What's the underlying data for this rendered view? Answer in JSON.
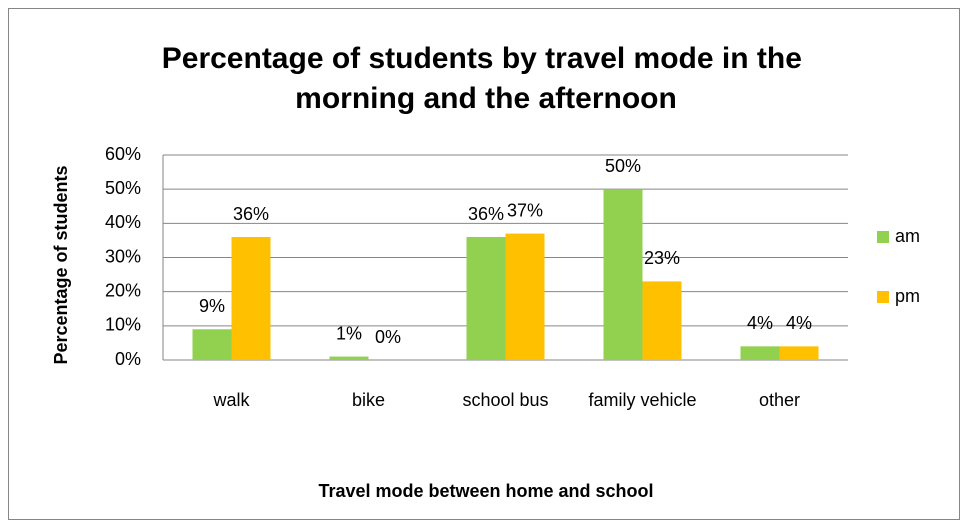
{
  "chart_data": {
    "type": "bar",
    "title": "Percentage of students by travel mode in the morning and the afternoon",
    "xlabel": "Travel mode between home and school",
    "ylabel": "Percentage of students",
    "categories": [
      "walk",
      "bike",
      "school bus",
      "family vehicle",
      "other"
    ],
    "series": [
      {
        "name": "am",
        "color": "#92d050",
        "values": [
          9,
          1,
          36,
          50,
          4
        ],
        "value_labels": [
          "9%",
          "1%",
          "36%",
          "50%",
          "4%"
        ]
      },
      {
        "name": "pm",
        "color": "#ffc000",
        "values": [
          36,
          0,
          37,
          23,
          4
        ],
        "value_labels": [
          "36%",
          "0%",
          "37%",
          "23%",
          "4%"
        ]
      }
    ],
    "ylim": [
      0,
      60
    ],
    "yticks": [
      {
        "value": 0,
        "label": "0%"
      },
      {
        "value": 10,
        "label": "10%"
      },
      {
        "value": 20,
        "label": "20%"
      },
      {
        "value": 30,
        "label": "30%"
      },
      {
        "value": 40,
        "label": "40%"
      },
      {
        "value": 50,
        "label": "50%"
      },
      {
        "value": 60,
        "label": "60%"
      }
    ],
    "grid": true,
    "legend": "right"
  }
}
